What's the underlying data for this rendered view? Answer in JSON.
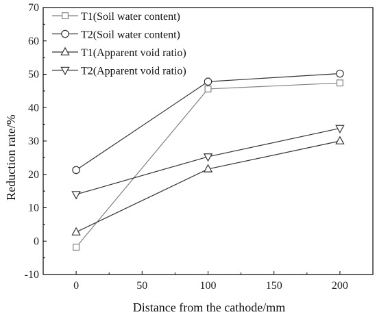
{
  "chart_data": {
    "type": "line",
    "xlabel": "Distance from the cathode/mm",
    "ylabel": "Reduction rate/%",
    "xlim": [
      -25,
      225
    ],
    "ylim": [
      -10,
      70
    ],
    "xticks": [
      0,
      50,
      100,
      150,
      200
    ],
    "yticks": [
      -10,
      0,
      10,
      20,
      30,
      40,
      50,
      60,
      70
    ],
    "grid": false,
    "legend_position": "top-left",
    "x": [
      0,
      100,
      200
    ],
    "series": [
      {
        "name": "T1(Soil water content)",
        "marker": "square",
        "color": "#808080",
        "values": [
          -1.8,
          45.6,
          47.4
        ]
      },
      {
        "name": "T2(Soil water content)",
        "marker": "circle",
        "color": "#333333",
        "values": [
          21.3,
          47.8,
          50.2
        ]
      },
      {
        "name": "T1(Apparent void ratio)",
        "marker": "triangle-up",
        "color": "#333333",
        "values": [
          2.7,
          21.6,
          30.0
        ]
      },
      {
        "name": "T2(Apparent void ratio)",
        "marker": "triangle-down",
        "color": "#333333",
        "values": [
          14.0,
          25.3,
          33.8
        ]
      }
    ]
  }
}
